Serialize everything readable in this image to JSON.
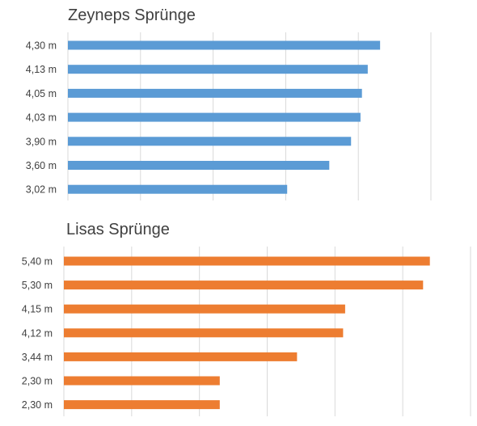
{
  "chart_data": [
    {
      "type": "bar",
      "orientation": "horizontal",
      "title": "Zeyneps Sprünge",
      "categories": [
        "4,30 m",
        "4,13 m",
        "4,05 m",
        "4,03 m",
        "3,90 m",
        "3,60 m",
        "3,02 m"
      ],
      "values": [
        4.3,
        4.13,
        4.05,
        4.03,
        3.9,
        3.6,
        3.02
      ],
      "color": "#5b9bd5",
      "xlim": [
        0,
        5
      ],
      "grid": true,
      "xlabel": "",
      "ylabel": ""
    },
    {
      "type": "bar",
      "orientation": "horizontal",
      "title": "Lisas Sprünge",
      "categories": [
        "5,40 m",
        "5,30 m",
        "4,15 m",
        "4,12 m",
        "3,44 m",
        "2,30 m",
        "2,30 m"
      ],
      "values": [
        5.4,
        5.3,
        4.15,
        4.12,
        3.44,
        2.3,
        2.3
      ],
      "color": "#ed7d31",
      "xlim": [
        0,
        6
      ],
      "grid": true,
      "xlabel": "",
      "ylabel": ""
    }
  ]
}
